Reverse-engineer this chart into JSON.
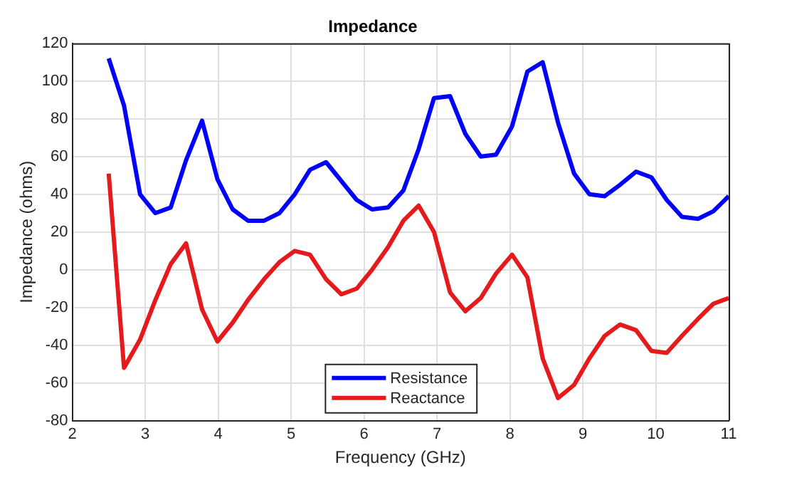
{
  "chart_data": {
    "type": "line",
    "title": "Impedance",
    "xlabel": "Frequency (GHz)",
    "ylabel": "Impedance (ohms)",
    "x": [
      2.5,
      2.71,
      2.93,
      3.14,
      3.35,
      3.56,
      3.78,
      3.99,
      4.2,
      4.41,
      4.63,
      4.84,
      5.05,
      5.26,
      5.48,
      5.69,
      5.9,
      6.11,
      6.33,
      6.54,
      6.75,
      6.96,
      7.18,
      7.39,
      7.6,
      7.81,
      8.03,
      8.24,
      8.45,
      8.66,
      8.88,
      9.09,
      9.3,
      9.51,
      9.73,
      9.94,
      10.15,
      10.36,
      10.58,
      10.79,
      11
    ],
    "series": [
      {
        "name": "Resistance",
        "color": "#0000ff",
        "values": [
          112,
          87,
          40,
          30,
          33,
          58,
          79,
          48,
          32,
          26,
          26,
          30,
          40,
          53,
          57,
          47,
          37,
          32,
          33,
          42,
          64,
          91,
          92,
          72,
          60,
          61,
          76,
          105,
          110,
          78,
          51,
          40,
          39,
          45,
          52,
          49,
          37,
          28,
          27,
          31,
          39
        ]
      },
      {
        "name": "Reactance",
        "color": "#e41a1c",
        "values": [
          51,
          -52,
          -37,
          -16,
          3,
          14,
          -21,
          -38,
          -28,
          -16,
          -5,
          4,
          10,
          8,
          -5,
          -13,
          -10,
          0,
          12,
          26,
          34,
          20,
          -12,
          -22,
          -15,
          -2,
          8,
          -4,
          -47,
          -68,
          -61,
          -47,
          -35,
          -29,
          -32,
          -43,
          -44,
          -35,
          -26,
          -18,
          -15
        ]
      }
    ],
    "xlim": [
      2,
      11
    ],
    "xticks": [
      2,
      3,
      4,
      5,
      6,
      7,
      8,
      9,
      10,
      11
    ],
    "ylim": [
      -80,
      120
    ],
    "yticks": [
      -80,
      -60,
      -40,
      -20,
      0,
      20,
      40,
      60,
      80,
      100,
      120
    ],
    "grid": true,
    "legend": "bottom"
  }
}
